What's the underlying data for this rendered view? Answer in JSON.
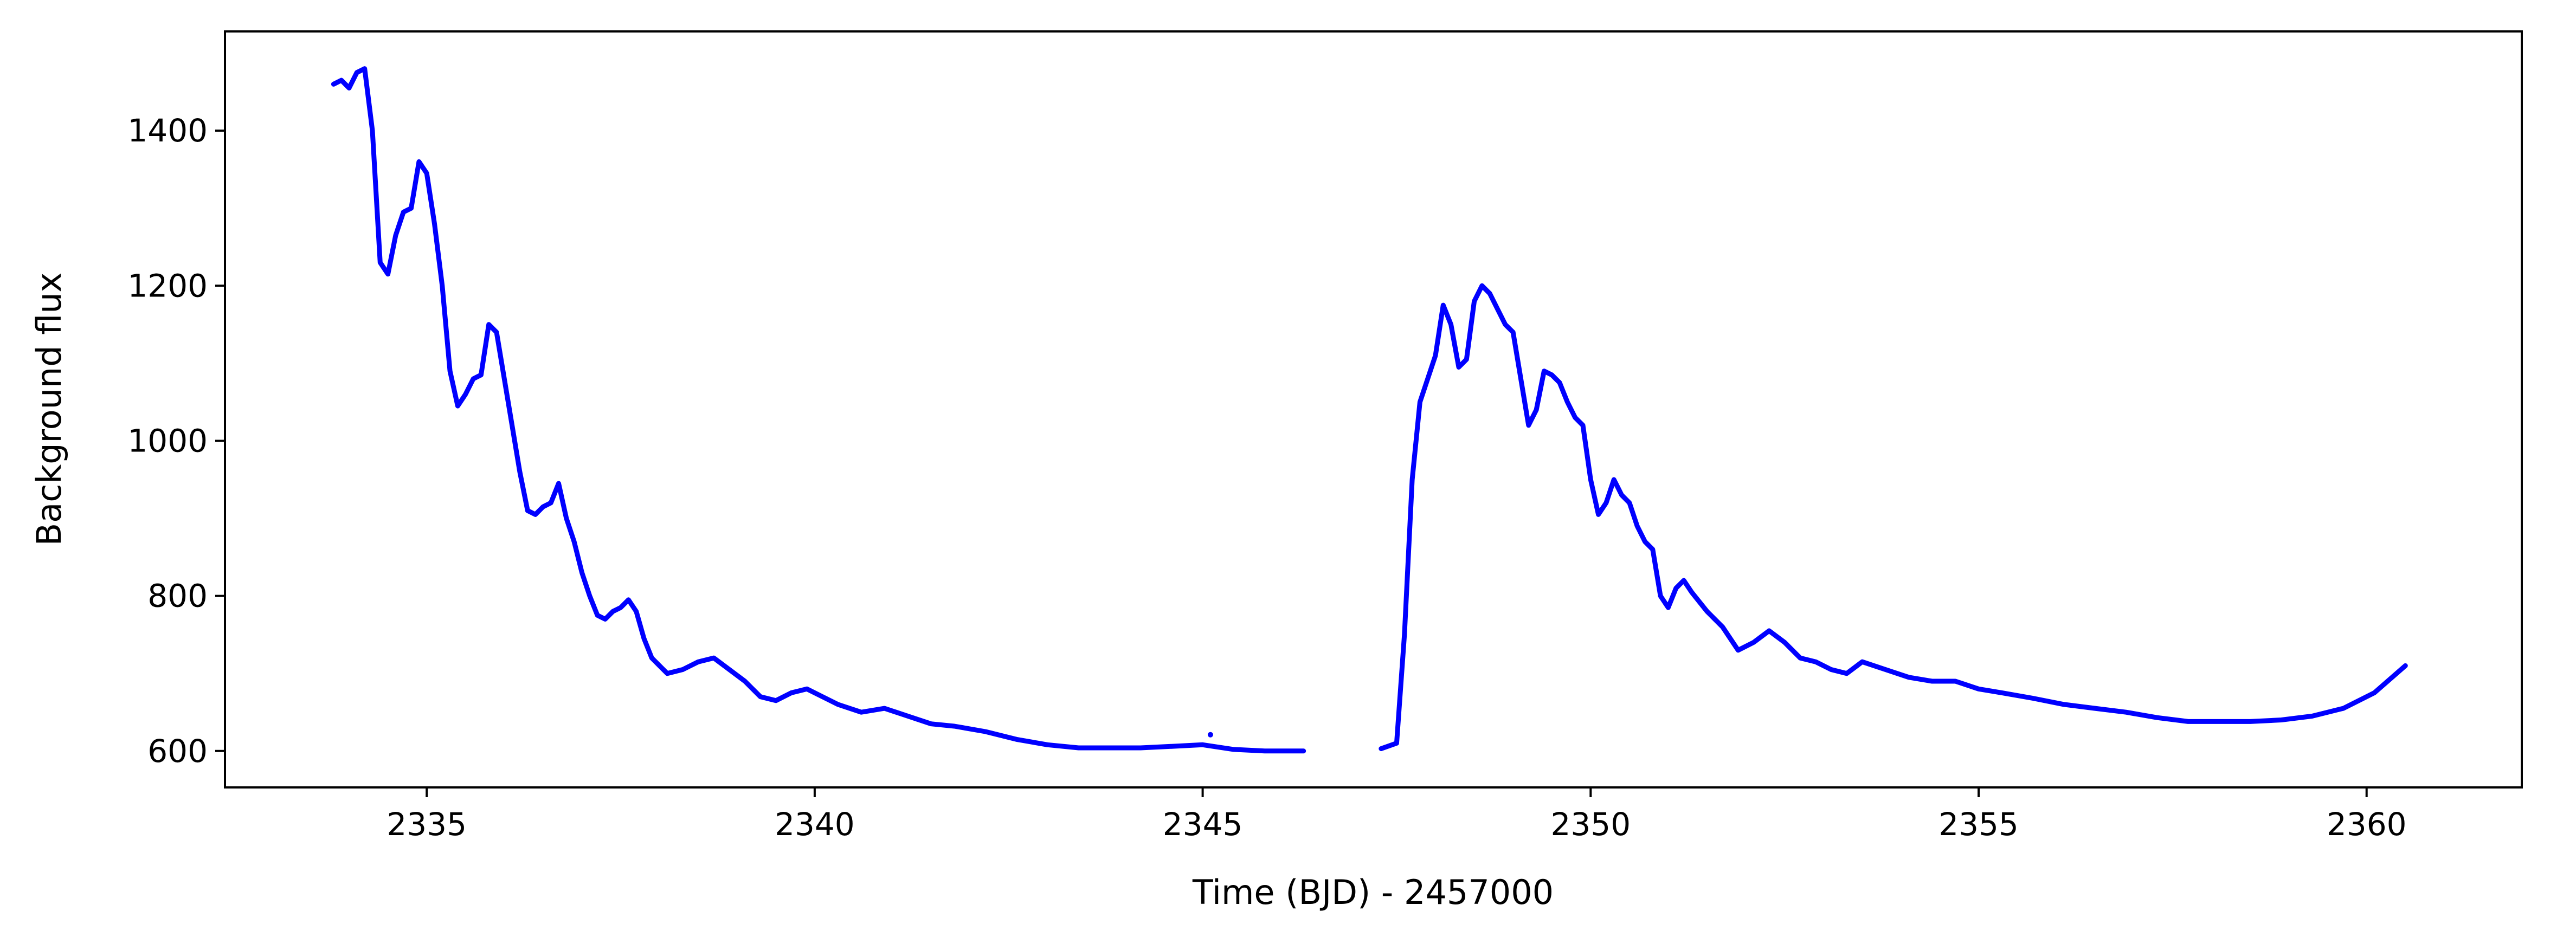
{
  "chart_data": {
    "type": "scatter",
    "title": "",
    "xlabel": "Time (BJD) - 2457000",
    "ylabel": "Background flux",
    "xlim": [
      2332.4,
      2362.0
    ],
    "ylim": [
      553,
      1528
    ],
    "xticks": [
      2335,
      2340,
      2345,
      2350,
      2355,
      2360
    ],
    "yticks": [
      600,
      800,
      1000,
      1200,
      1400
    ],
    "xtick_labels": [
      "2335",
      "2340",
      "2345",
      "2350",
      "2355",
      "2360"
    ],
    "ytick_labels": [
      "600",
      "800",
      "1000",
      "1200",
      "1400"
    ],
    "grid": false,
    "legend": false,
    "color": "#0000ff",
    "series": [
      {
        "x": [
          2333.8,
          2333.9,
          2334.0,
          2334.1,
          2334.2,
          2334.3,
          2334.4,
          2334.5,
          2334.6,
          2334.7,
          2334.8,
          2334.9,
          2335.0,
          2335.1,
          2335.2,
          2335.3,
          2335.4,
          2335.5,
          2335.6,
          2335.7,
          2335.8,
          2335.9,
          2336.0,
          2336.1,
          2336.2,
          2336.3,
          2336.4,
          2336.5,
          2336.6,
          2336.7,
          2336.8,
          2336.9,
          2337.0,
          2337.1,
          2337.2,
          2337.3,
          2337.4,
          2337.5,
          2337.6,
          2337.7,
          2337.8,
          2337.9,
          2338.0,
          2338.1,
          2338.3,
          2338.5,
          2338.7,
          2338.9,
          2339.1,
          2339.3,
          2339.5,
          2339.7,
          2339.9,
          2340.1,
          2340.3,
          2340.6,
          2340.9,
          2341.2,
          2341.5,
          2341.8,
          2342.2,
          2342.6,
          2343.0,
          2343.4,
          2343.8,
          2344.2,
          2344.6,
          2345.0,
          2345.4,
          2345.8,
          2346.3
        ],
        "y": [
          1460,
          1465,
          1455,
          1475,
          1480,
          1400,
          1230,
          1215,
          1265,
          1295,
          1300,
          1360,
          1345,
          1280,
          1200,
          1090,
          1045,
          1060,
          1080,
          1085,
          1150,
          1140,
          1080,
          1020,
          960,
          910,
          905,
          915,
          920,
          945,
          900,
          870,
          830,
          800,
          775,
          770,
          780,
          785,
          795,
          780,
          745,
          720,
          710,
          700,
          705,
          715,
          720,
          705,
          690,
          670,
          665,
          675,
          680,
          670,
          660,
          650,
          655,
          645,
          635,
          632,
          625,
          615,
          608,
          604,
          604,
          604,
          606,
          608,
          602,
          600,
          600
        ]
      },
      {
        "x": [
          2347.3,
          2347.5,
          2347.6,
          2347.7,
          2347.8,
          2347.9,
          2348.0,
          2348.1,
          2348.2,
          2348.3,
          2348.4,
          2348.5,
          2348.6,
          2348.7,
          2348.8,
          2348.9,
          2349.0,
          2349.1,
          2349.2,
          2349.3,
          2349.4,
          2349.5,
          2349.6,
          2349.7,
          2349.8,
          2349.9,
          2350.0,
          2350.1,
          2350.2,
          2350.3,
          2350.4,
          2350.5,
          2350.6,
          2350.7,
          2350.8,
          2350.9,
          2351.0,
          2351.1,
          2351.2,
          2351.3,
          2351.5,
          2351.7,
          2351.9,
          2352.1,
          2352.3,
          2352.5,
          2352.7,
          2352.9,
          2353.1,
          2353.3,
          2353.5,
          2353.8,
          2354.1,
          2354.4,
          2354.7,
          2355.0,
          2355.3,
          2355.7,
          2356.1,
          2356.5,
          2356.9,
          2357.3,
          2357.7,
          2358.1,
          2358.5,
          2358.9,
          2359.3,
          2359.7,
          2360.1,
          2360.5
        ],
        "y": [
          603,
          610,
          750,
          950,
          1050,
          1080,
          1110,
          1175,
          1150,
          1095,
          1105,
          1180,
          1200,
          1190,
          1170,
          1150,
          1140,
          1080,
          1020,
          1040,
          1090,
          1085,
          1075,
          1050,
          1030,
          1020,
          950,
          905,
          920,
          950,
          930,
          920,
          890,
          870,
          860,
          800,
          785,
          810,
          820,
          805,
          780,
          760,
          730,
          740,
          755,
          740,
          720,
          715,
          705,
          700,
          715,
          705,
          695,
          690,
          690,
          680,
          675,
          668,
          660,
          655,
          650,
          643,
          638,
          638,
          638,
          640,
          645,
          655,
          675,
          710
        ]
      }
    ],
    "outliers": [
      {
        "x": 2345.1,
        "y": 621
      }
    ]
  }
}
